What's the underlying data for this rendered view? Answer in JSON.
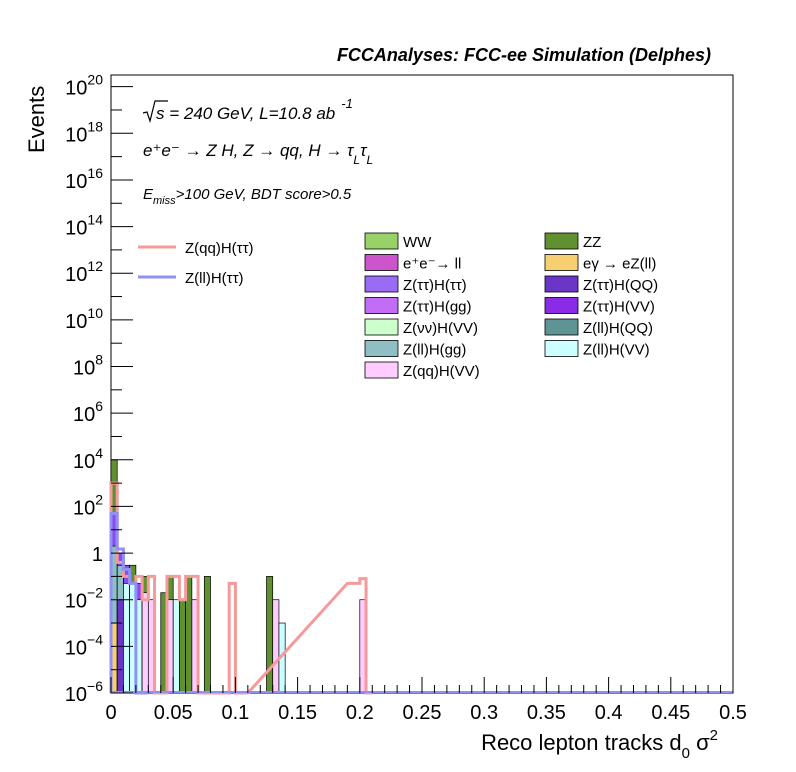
{
  "chart_data": {
    "type": "bar",
    "title": "FCCAnalyses: FCC-ee Simulation (Delphes)",
    "xlabel": "Reco lepton tracks d",
    "xlabel_sub": "0",
    "xlabel_tail": " σ",
    "xlabel_sup": "2",
    "ylabel": "Events",
    "xlim": [
      0,
      0.5
    ],
    "ylim_exp": [
      -6,
      20.5
    ],
    "y_log": true,
    "grid": false,
    "x_ticks": [
      "0",
      "0.05",
      "0.1",
      "0.15",
      "0.2",
      "0.25",
      "0.3",
      "0.35",
      "0.4",
      "0.45",
      "0.5"
    ],
    "y_ticks": [
      {
        "exp": -6,
        "base": "10",
        "sup": "−6"
      },
      {
        "exp": -4,
        "base": "10",
        "sup": "−4"
      },
      {
        "exp": -2,
        "base": "10",
        "sup": "−2"
      },
      {
        "exp": 0,
        "base": "1",
        "sup": ""
      },
      {
        "exp": 2,
        "base": "10",
        "sup": "2"
      },
      {
        "exp": 4,
        "base": "10",
        "sup": "4"
      },
      {
        "exp": 6,
        "base": "10",
        "sup": "6"
      },
      {
        "exp": 8,
        "base": "10",
        "sup": "8"
      },
      {
        "exp": 10,
        "base": "10",
        "sup": "10"
      },
      {
        "exp": 12,
        "base": "10",
        "sup": "12"
      },
      {
        "exp": 14,
        "base": "10",
        "sup": "14"
      },
      {
        "exp": 16,
        "base": "10",
        "sup": "16"
      },
      {
        "exp": 18,
        "base": "10",
        "sup": "18"
      },
      {
        "exp": 20,
        "base": "10",
        "sup": "20"
      }
    ],
    "annotations": {
      "sqrt_s": "s = 240 GeV, L=10.8 ab",
      "lumi_sup": "-1",
      "process": "e⁺e⁻ → Z H, Z  → qq, H  → τ",
      "tau_sub": "L",
      "selection": "E",
      "miss_sub": "miss",
      "selection_tail": ">100 GeV, BDT score>0.5"
    },
    "bin_width": 0.005,
    "stacked_bars": [
      {
        "x": 0.0,
        "value": 10000,
        "color": "#609030"
      },
      {
        "x": 0.0,
        "value": 50,
        "color": "#8A4AF0"
      },
      {
        "x": 0.0,
        "value": 2,
        "color": "#8DBFC4"
      },
      {
        "x": 0.0,
        "value": 0.001,
        "color": "#F7CF70"
      },
      {
        "x": 0.005,
        "value": 1,
        "color": "#8A4AF0"
      },
      {
        "x": 0.005,
        "value": 0.3,
        "color": "#8DBFC4"
      },
      {
        "x": 0.005,
        "value": 0.01,
        "color": "#6B35C8"
      },
      {
        "x": 0.01,
        "value": 0.3,
        "color": "#8A4AF0"
      },
      {
        "x": 0.01,
        "value": 0.05,
        "color": "#CCFFFF"
      },
      {
        "x": 0.015,
        "value": 0.3,
        "color": "#609030"
      },
      {
        "x": 0.015,
        "value": 0.05,
        "color": "#CCFFFF"
      },
      {
        "x": 0.02,
        "value": 0.05,
        "color": "#8A4AF0"
      },
      {
        "x": 0.02,
        "value": 0.01,
        "color": "#CCFFFF"
      },
      {
        "x": 0.025,
        "value": 0.1,
        "color": "#609030"
      },
      {
        "x": 0.025,
        "value": 0.02,
        "color": "#FFCCFF"
      },
      {
        "x": 0.03,
        "value": 0.01,
        "color": "#FFCCFF"
      },
      {
        "x": 0.04,
        "value": 0.02,
        "color": "#609030"
      },
      {
        "x": 0.045,
        "value": 0.1,
        "color": "#609030"
      },
      {
        "x": 0.045,
        "value": 0.01,
        "color": "#FFCCFF"
      },
      {
        "x": 0.05,
        "value": 0.01,
        "color": "#CCFFFF"
      },
      {
        "x": 0.055,
        "value": 0.01,
        "color": "#609030"
      },
      {
        "x": 0.06,
        "value": 0.1,
        "color": "#609030"
      },
      {
        "x": 0.065,
        "value": 0.01,
        "color": "#FFCCFF"
      },
      {
        "x": 0.075,
        "value": 0.1,
        "color": "#609030"
      },
      {
        "x": 0.125,
        "value": 0.1,
        "color": "#609030"
      },
      {
        "x": 0.13,
        "value": 0.01,
        "color": "#FFCCFF"
      },
      {
        "x": 0.135,
        "value": 0.001,
        "color": "#CCFFFF"
      },
      {
        "x": 0.2,
        "value": 0.01,
        "color": "#FFCCFF"
      }
    ],
    "series": [
      {
        "name": "Z(qq)H(ττ)",
        "color": "#F49A9A",
        "x": [
          0.0,
          0.005,
          0.01,
          0.015,
          0.02,
          0.025,
          0.03,
          0.035,
          0.04,
          0.045,
          0.05,
          0.055,
          0.06,
          0.065,
          0.07,
          0.075,
          0.08,
          0.085,
          0.09,
          0.095,
          0.1,
          0.105,
          0.19,
          0.195,
          0.2,
          0.205
        ],
        "values": [
          1000,
          0.4,
          0.1,
          0.05,
          0.1,
          0.01,
          0.1,
          1e-06,
          1e-06,
          0.1,
          0.1,
          0.01,
          0.1,
          0.1,
          1e-06,
          1e-06,
          1e-06,
          1e-06,
          1e-06,
          0.05,
          1e-06,
          1e-06,
          0.05,
          0.05,
          0.08,
          1e-06
        ]
      },
      {
        "name": "Z(ll)H(ττ)",
        "color": "#9090F5",
        "x": [
          0.0,
          0.005,
          0.01,
          0.015,
          0.02,
          0.025
        ],
        "values": [
          50,
          1.5,
          0.2,
          0.05,
          1e-06,
          1e-06
        ]
      }
    ],
    "legend_lines": [
      {
        "name": "Z(qq)H(ττ)",
        "color": "#F49A9A"
      },
      {
        "name": "Z(ll)H(ττ)",
        "color": "#9090F5"
      }
    ],
    "legend_fills": [
      {
        "name": "WW",
        "color": "#97D168"
      },
      {
        "name": "ZZ",
        "color": "#609030"
      },
      {
        "name": "e⁺e⁻→ ll",
        "color": "#CC55CC"
      },
      {
        "name": "eγ  → eZ(ll)",
        "color": "#F7CF70"
      },
      {
        "name": "Z(ττ)H(ττ)",
        "color": "#9A6CF5"
      },
      {
        "name": "Z(ττ)H(QQ)",
        "color": "#6B35C8"
      },
      {
        "name": "Z(ττ)H(gg)",
        "color": "#C36CF5"
      },
      {
        "name": "Z(ττ)H(VV)",
        "color": "#8A2BE8"
      },
      {
        "name": "Z(νν)H(VV)",
        "color": "#CCFFCC"
      },
      {
        "name": "Z(ll)H(QQ)",
        "color": "#5F9494"
      },
      {
        "name": "Z(ll)H(gg)",
        "color": "#8DBFC4"
      },
      {
        "name": "Z(ll)H(VV)",
        "color": "#CCFFFF"
      },
      {
        "name": "Z(qq)H(VV)",
        "color": "#FFCCFF"
      }
    ]
  }
}
